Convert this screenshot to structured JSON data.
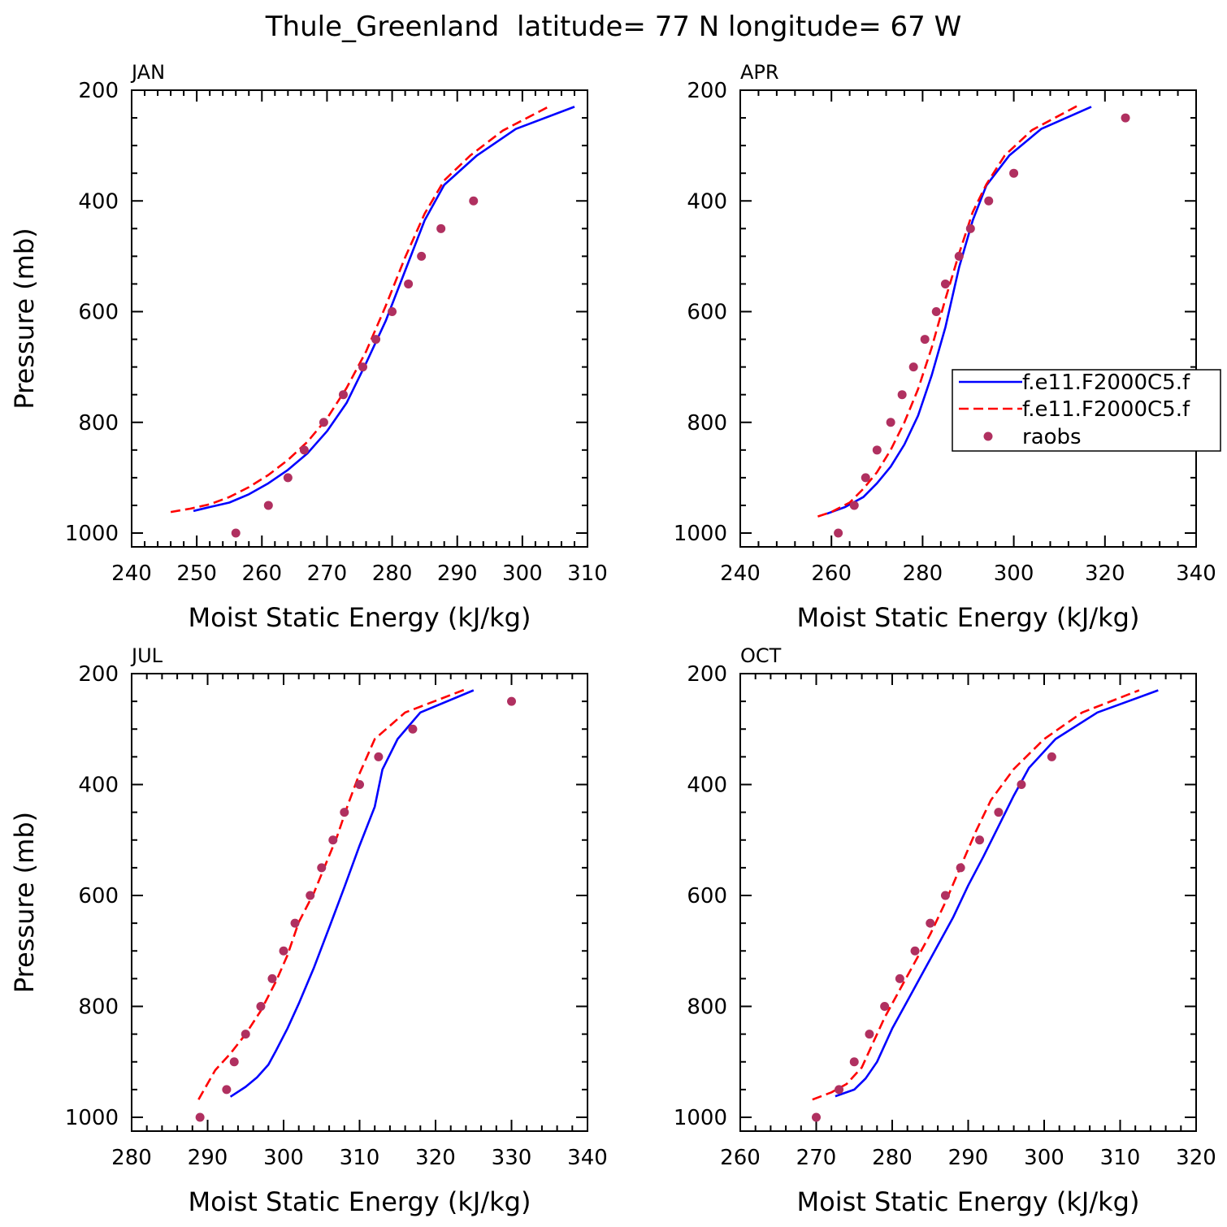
{
  "figure_title": "Thule_Greenland  latitude= 77 N longitude= 67 W",
  "legend": {
    "entries": [
      {
        "label": "f.e11.F2000C5.f",
        "color": "#0000ff",
        "style": "solid"
      },
      {
        "label": "f.e11.F2000C5.f",
        "color": "#ff0000",
        "style": "dashed"
      },
      {
        "label": "raobs",
        "color": "#b03060",
        "style": "marker"
      }
    ]
  },
  "colors": {
    "model1": "#0000ff",
    "model2": "#ff0000",
    "obs": "#b03060"
  },
  "chart_data": [
    {
      "type": "line",
      "panel": "JAN",
      "xlabel": "Moist Static Energy (kJ/kg)",
      "ylabel": "Pressure (mb)",
      "xlim": [
        240,
        310
      ],
      "ylim": [
        1000,
        200
      ],
      "y_reversed": true,
      "xticks": [
        240,
        250,
        260,
        270,
        280,
        290,
        300,
        310
      ],
      "yticks": [
        200,
        400,
        600,
        800,
        1000
      ],
      "series": [
        {
          "name": "f.e11.F2000C5.f",
          "style": "solid",
          "points": [
            [
              249.5,
              960
            ],
            [
              252,
              953
            ],
            [
              255,
              945
            ],
            [
              258,
              930
            ],
            [
              261,
              910
            ],
            [
              264,
              886
            ],
            [
              267,
              856
            ],
            [
              270,
              816
            ],
            [
              273,
              765
            ],
            [
              276,
              693
            ],
            [
              279,
              617
            ],
            [
              282,
              526
            ],
            [
              285,
              435
            ],
            [
              288,
              371
            ],
            [
              293,
              318
            ],
            [
              299,
              270
            ],
            [
              308,
              230
            ]
          ]
        },
        {
          "name": "f.e11.F2000C5.f",
          "style": "dashed",
          "points": [
            [
              246,
              962
            ],
            [
              249,
              956
            ],
            [
              252,
              948
            ],
            [
              255,
              935
            ],
            [
              258,
              917
            ],
            [
              261,
              895
            ],
            [
              264,
              868
            ],
            [
              267,
              835
            ],
            [
              270,
              793
            ],
            [
              273,
              738
            ],
            [
              276,
              672
            ],
            [
              279,
              590
            ],
            [
              282,
              502
            ],
            [
              285,
              423
            ],
            [
              288,
              363
            ],
            [
              292,
              318
            ],
            [
              297,
              273
            ],
            [
              304,
              230
            ]
          ]
        },
        {
          "name": "raobs",
          "style": "marker",
          "points": [
            [
              256,
              1000
            ],
            [
              261,
              950
            ],
            [
              264,
              900
            ],
            [
              266.5,
              850
            ],
            [
              269.5,
              800
            ],
            [
              272.5,
              750
            ],
            [
              275.5,
              700
            ],
            [
              277.5,
              650
            ],
            [
              280,
              600
            ],
            [
              282.5,
              550
            ],
            [
              284.5,
              500
            ],
            [
              287.5,
              450
            ],
            [
              292.5,
              400
            ]
          ]
        }
      ]
    },
    {
      "type": "line",
      "panel": "APR",
      "xlabel": "Moist Static Energy (kJ/kg)",
      "ylabel": "",
      "xlim": [
        240,
        340
      ],
      "ylim": [
        1000,
        200
      ],
      "y_reversed": true,
      "xticks": [
        240,
        260,
        280,
        300,
        320,
        340
      ],
      "yticks": [
        200,
        400,
        600,
        800,
        1000
      ],
      "series": [
        {
          "name": "f.e11.F2000C5.f",
          "style": "solid",
          "points": [
            [
              259,
              965
            ],
            [
              263,
              953
            ],
            [
              267,
              935
            ],
            [
              270,
              910
            ],
            [
              273,
              880
            ],
            [
              276,
              840
            ],
            [
              279,
              788
            ],
            [
              282,
              715
            ],
            [
              285,
              628
            ],
            [
              288,
              520
            ],
            [
              291,
              435
            ],
            [
              294,
              372
            ],
            [
              299,
              318
            ],
            [
              306,
              270
            ],
            [
              317,
              230
            ]
          ]
        },
        {
          "name": "f.e11.F2000C5.f",
          "style": "dashed",
          "points": [
            [
              257,
              970
            ],
            [
              260,
              962
            ],
            [
              264,
              945
            ],
            [
              267,
              920
            ],
            [
              270,
              890
            ],
            [
              273,
              850
            ],
            [
              276,
              800
            ],
            [
              279,
              740
            ],
            [
              282,
              665
            ],
            [
              285,
              577
            ],
            [
              288,
              495
            ],
            [
              291,
              420
            ],
            [
              294,
              370
            ],
            [
              298,
              318
            ],
            [
              304,
              272
            ],
            [
              314,
              228
            ]
          ]
        },
        {
          "name": "raobs",
          "style": "marker",
          "points": [
            [
              261.5,
              1000
            ],
            [
              265,
              950
            ],
            [
              267.5,
              900
            ],
            [
              270,
              850
            ],
            [
              273,
              800
            ],
            [
              275.5,
              750
            ],
            [
              278,
              700
            ],
            [
              280.5,
              650
            ],
            [
              283,
              600
            ],
            [
              285,
              550
            ],
            [
              288,
              500
            ],
            [
              290.5,
              450
            ],
            [
              294.5,
              400
            ],
            [
              300,
              350
            ],
            [
              324.5,
              250
            ]
          ]
        }
      ]
    },
    {
      "type": "line",
      "panel": "JUL",
      "xlabel": "Moist Static Energy (kJ/kg)",
      "ylabel": "Pressure (mb)",
      "xlim": [
        280,
        340
      ],
      "ylim": [
        1000,
        200
      ],
      "y_reversed": true,
      "xticks": [
        280,
        290,
        300,
        310,
        320,
        330,
        340
      ],
      "yticks": [
        200,
        400,
        600,
        800,
        1000
      ],
      "series": [
        {
          "name": "f.e11.F2000C5.f",
          "style": "solid",
          "points": [
            [
              293,
              963
            ],
            [
              295,
              945
            ],
            [
              296.5,
              928
            ],
            [
              298,
              905
            ],
            [
              299,
              880
            ],
            [
              300.5,
              840
            ],
            [
              302,
              795
            ],
            [
              304,
              730
            ],
            [
              306,
              658
            ],
            [
              308,
              585
            ],
            [
              310,
              510
            ],
            [
              312,
              440
            ],
            [
              313,
              373
            ],
            [
              315,
              318
            ],
            [
              318,
              270
            ],
            [
              325,
              230
            ]
          ]
        },
        {
          "name": "f.e11.F2000C5.f",
          "style": "dashed",
          "points": [
            [
              288.8,
              968
            ],
            [
              291,
              915
            ],
            [
              293,
              885
            ],
            [
              295,
              850
            ],
            [
              297,
              808
            ],
            [
              299,
              755
            ],
            [
              300.5,
              708
            ],
            [
              302,
              648
            ],
            [
              304,
              595
            ],
            [
              305.5,
              545
            ],
            [
              307,
              495
            ],
            [
              308.5,
              435
            ],
            [
              310,
              380
            ],
            [
              312,
              318
            ],
            [
              316,
              270
            ],
            [
              324,
              228
            ]
          ]
        },
        {
          "name": "raobs",
          "style": "marker",
          "points": [
            [
              289,
              1000
            ],
            [
              292.5,
              950
            ],
            [
              293.5,
              900
            ],
            [
              295,
              850
            ],
            [
              297,
              800
            ],
            [
              298.5,
              750
            ],
            [
              300,
              700
            ],
            [
              301.5,
              650
            ],
            [
              303.5,
              600
            ],
            [
              305,
              550
            ],
            [
              306.5,
              500
            ],
            [
              308,
              450
            ],
            [
              310,
              400
            ],
            [
              312.5,
              350
            ],
            [
              317,
              300
            ],
            [
              330,
              250
            ]
          ]
        }
      ]
    },
    {
      "type": "line",
      "panel": "OCT",
      "xlabel": "Moist Static Energy (kJ/kg)",
      "ylabel": "",
      "xlim": [
        260,
        320
      ],
      "ylim": [
        1000,
        200
      ],
      "y_reversed": true,
      "xticks": [
        260,
        270,
        280,
        290,
        300,
        310,
        320
      ],
      "yticks": [
        200,
        400,
        600,
        800,
        1000
      ],
      "series": [
        {
          "name": "f.e11.F2000C5.f",
          "style": "solid",
          "points": [
            [
              272.5,
              962
            ],
            [
              275,
              950
            ],
            [
              276.5,
              930
            ],
            [
              278,
              900
            ],
            [
              280,
              840
            ],
            [
              282,
              790
            ],
            [
              284,
              740
            ],
            [
              286,
              690
            ],
            [
              288,
              640
            ],
            [
              290,
              582
            ],
            [
              292,
              530
            ],
            [
              294,
              475
            ],
            [
              296,
              420
            ],
            [
              298,
              370
            ],
            [
              301.5,
              318
            ],
            [
              307,
              270
            ],
            [
              315,
              230
            ]
          ]
        },
        {
          "name": "f.e11.F2000C5.f",
          "style": "dashed",
          "points": [
            [
              269.5,
              968
            ],
            [
              272,
              955
            ],
            [
              274,
              940
            ],
            [
              276,
              910
            ],
            [
              277.5,
              865
            ],
            [
              279,
              820
            ],
            [
              281,
              770
            ],
            [
              283,
              720
            ],
            [
              285,
              670
            ],
            [
              287,
              612
            ],
            [
              289,
              548
            ],
            [
              291,
              485
            ],
            [
              293,
              428
            ],
            [
              296,
              372
            ],
            [
              300,
              318
            ],
            [
              305,
              270
            ],
            [
              312.5,
              230
            ]
          ]
        },
        {
          "name": "raobs",
          "style": "marker",
          "points": [
            [
              270,
              1000
            ],
            [
              273,
              950
            ],
            [
              275,
              900
            ],
            [
              277,
              850
            ],
            [
              279,
              800
            ],
            [
              281,
              750
            ],
            [
              283,
              700
            ],
            [
              285,
              650
            ],
            [
              287,
              600
            ],
            [
              289,
              550
            ],
            [
              291.5,
              500
            ],
            [
              294,
              450
            ],
            [
              297,
              400
            ],
            [
              301,
              350
            ]
          ]
        }
      ]
    }
  ]
}
